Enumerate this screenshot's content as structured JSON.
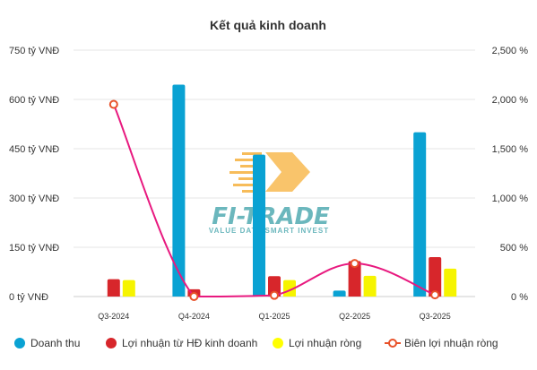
{
  "chart_data": {
    "type": "bar",
    "title": "Kết quả kinh doanh",
    "categories": [
      "Q3-2024",
      "Q4-2024",
      "Q1-2025",
      "Q2-2025",
      "Q3-2025"
    ],
    "series": [
      {
        "name": "Doanh thu",
        "type": "bar",
        "axis": "left",
        "color": "#0aa2d3",
        "values": [
          0,
          645,
          432,
          18,
          500
        ]
      },
      {
        "name": "Lợi nhuận từ HĐ kinh doanh",
        "type": "bar",
        "axis": "left",
        "color": "#d7262b",
        "values": [
          53,
          22,
          62,
          108,
          120
        ]
      },
      {
        "name": "Lợi nhuận ròng",
        "type": "bar",
        "axis": "left",
        "color": "#f6f400",
        "values": [
          50,
          0,
          50,
          63,
          85
        ]
      },
      {
        "name": "Biên lợi nhuận ròng",
        "type": "line",
        "axis": "right",
        "color": "#e8197f",
        "values": [
          1950,
          0,
          12,
          335,
          17
        ]
      }
    ],
    "y_left": {
      "min": 0,
      "max": 750,
      "ticks": [
        0,
        150,
        300,
        450,
        600,
        750
      ],
      "tick_labels": [
        "0 tỷ VNĐ",
        "150 tỷ VNĐ",
        "300 tỷ VNĐ",
        "450 tỷ VNĐ",
        "600 tỷ VNĐ",
        "750 tỷ VNĐ"
      ]
    },
    "y_right": {
      "min": 0,
      "max": 2500,
      "ticks": [
        0,
        500,
        1000,
        1500,
        2000,
        2500
      ],
      "tick_labels": [
        "0 %",
        "500 %",
        "1,000 %",
        "1,500 %",
        "2,000 %",
        "2,500 %"
      ]
    },
    "grid": true,
    "legend": "bottom",
    "watermark": {
      "logo_text": "FI-TRADE",
      "tagline": "VALUE DATA SMART INVEST",
      "accent": "#f5a623",
      "color": "#3aa0a8"
    }
  }
}
